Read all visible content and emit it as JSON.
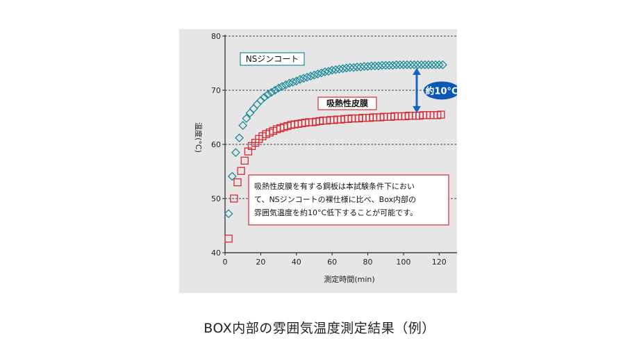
{
  "caption": "BOX内部の雰囲気温度測定結果（例）",
  "colors": {
    "panel_bg": "#e6e6e6",
    "zinc_series": "#1a8a9a",
    "film_series": "#d42a35",
    "arrow": "#1565c0",
    "badge": "#0b57b5"
  },
  "chart_data": {
    "type": "scatter",
    "xlabel": "測定時間(min)",
    "ylabel": "温度(°C)",
    "xlim": [
      0,
      130
    ],
    "ylim": [
      40,
      80
    ],
    "xticks": [
      0,
      20,
      40,
      60,
      80,
      100,
      120
    ],
    "yticks": [
      40,
      50,
      60,
      70,
      80
    ],
    "grid": "horizontal dashed",
    "series": [
      {
        "name": "NSジンコート",
        "marker": "diamond",
        "color": "#1a8a9a",
        "x": [
          2,
          4,
          6,
          8,
          10,
          12,
          14,
          16,
          18,
          20,
          22,
          24,
          26,
          28,
          30,
          32,
          34,
          36,
          38,
          40,
          42,
          44,
          46,
          48,
          50,
          52,
          54,
          56,
          58,
          60,
          62,
          64,
          66,
          68,
          70,
          72,
          74,
          76,
          78,
          80,
          82,
          84,
          86,
          88,
          90,
          92,
          94,
          96,
          98,
          100,
          102,
          104,
          106,
          108,
          110,
          112,
          114,
          116,
          118,
          120,
          122
        ],
        "y": [
          47.2,
          54.1,
          58.5,
          61.2,
          63.5,
          64.8,
          65.8,
          66.6,
          67.4,
          68.1,
          68.7,
          69.2,
          69.6,
          70.0,
          70.4,
          70.7,
          71.0,
          71.3,
          71.5,
          71.7,
          72.0,
          72.2,
          72.4,
          72.6,
          72.8,
          73.0,
          73.2,
          73.4,
          73.5,
          73.7,
          73.8,
          73.9,
          74.0,
          74.1,
          74.2,
          74.2,
          74.3,
          74.3,
          74.4,
          74.4,
          74.5,
          74.5,
          74.5,
          74.6,
          74.6,
          74.6,
          74.6,
          74.7,
          74.7,
          74.7,
          74.7,
          74.7,
          74.7,
          74.7,
          74.7,
          74.7,
          74.7,
          74.7,
          74.7,
          74.7,
          74.7
        ]
      },
      {
        "name": "吸熱性皮膜",
        "marker": "square",
        "color": "#d42a35",
        "x": [
          2,
          5,
          7,
          9,
          11,
          13,
          15,
          17,
          19,
          21,
          23,
          25,
          27,
          29,
          31,
          33,
          35,
          37,
          39,
          41,
          43,
          45,
          47,
          49,
          51,
          53,
          55,
          57,
          59,
          61,
          63,
          65,
          67,
          69,
          71,
          73,
          75,
          77,
          79,
          81,
          83,
          85,
          87,
          89,
          91,
          93,
          95,
          97,
          99,
          101,
          103,
          105,
          107,
          109,
          111,
          113,
          115,
          117,
          119,
          121
        ],
        "y": [
          42.6,
          50.0,
          53.0,
          55.1,
          57.0,
          58.7,
          59.7,
          60.3,
          61.0,
          61.5,
          61.9,
          62.2,
          62.5,
          62.8,
          63.0,
          63.2,
          63.4,
          63.6,
          63.7,
          63.8,
          63.9,
          64.0,
          64.1,
          64.1,
          64.2,
          64.3,
          64.4,
          64.4,
          64.5,
          64.5,
          64.6,
          64.6,
          64.7,
          64.7,
          64.8,
          64.8,
          64.8,
          64.9,
          64.9,
          64.9,
          65.0,
          65.0,
          65.0,
          65.1,
          65.1,
          65.1,
          65.2,
          65.2,
          65.2,
          65.2,
          65.3,
          65.3,
          65.3,
          65.3,
          65.4,
          65.4,
          65.4,
          65.4,
          65.4,
          65.5
        ]
      }
    ],
    "annotations": {
      "diff_label": "約10°C",
      "note_lines": [
        "吸熱性皮膜を有する鋼板は本試験条件下におい",
        "て、NSジンコートの裸仕様に比べ、Box内部の",
        "雰囲気温度を約10°C低下することが可能です。"
      ]
    }
  }
}
